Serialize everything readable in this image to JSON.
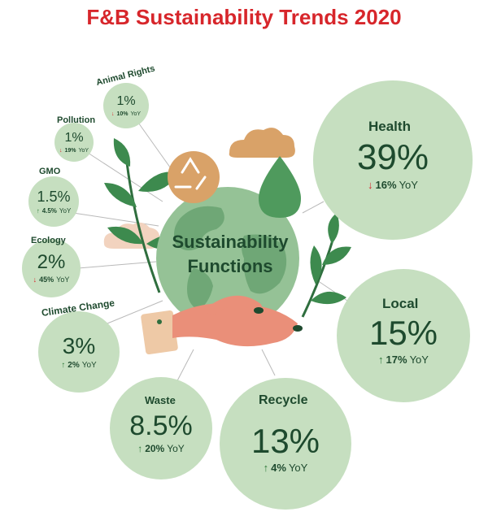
{
  "title": "F&B Sustainability Trends 2020",
  "center_label": [
    "Sustainability",
    "Functions"
  ],
  "colors": {
    "title": "#d7262b",
    "text": "#1e4a2e",
    "bubble": "#c6dfc0",
    "up": "#2f7a3a",
    "down": "#d7262b"
  },
  "trends": [
    {
      "id": "animal-rights",
      "name": "Animal Rights",
      "pct": "1%",
      "dir": "down",
      "yoy": "10%",
      "yoy_label": "YoY"
    },
    {
      "id": "pollution",
      "name": "Pollution",
      "pct": "1%",
      "dir": "down",
      "yoy": "19%",
      "yoy_label": "YoY"
    },
    {
      "id": "gmo",
      "name": "GMO",
      "pct": "1.5%",
      "dir": "up",
      "yoy": "4.5%",
      "yoy_label": "YoY"
    },
    {
      "id": "ecology",
      "name": "Ecology",
      "pct": "2%",
      "dir": "down",
      "yoy": "45%",
      "yoy_label": "YoY"
    },
    {
      "id": "climate-change",
      "name": "Climate Change",
      "pct": "3%",
      "dir": "up",
      "yoy": "2%",
      "yoy_label": "YoY"
    },
    {
      "id": "waste",
      "name": "Waste",
      "pct": "8.5%",
      "dir": "up",
      "yoy": "20%",
      "yoy_label": "YoY"
    },
    {
      "id": "recycle",
      "name": "Recycle",
      "pct": "13%",
      "dir": "up",
      "yoy": "4%",
      "yoy_label": "YoY"
    },
    {
      "id": "local",
      "name": "Local",
      "pct": "15%",
      "dir": "up",
      "yoy": "17%",
      "yoy_label": "YoY"
    },
    {
      "id": "health",
      "name": "Health",
      "pct": "39%",
      "dir": "down",
      "yoy": "16%",
      "yoy_label": "YoY"
    }
  ]
}
